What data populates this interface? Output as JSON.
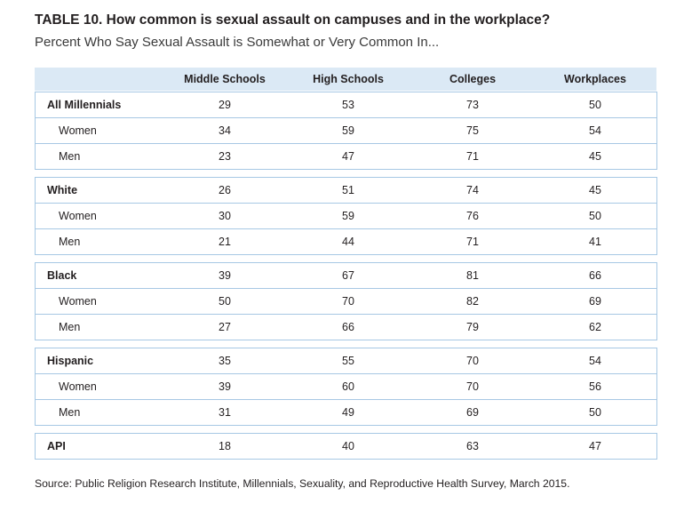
{
  "chart_data": {
    "type": "table",
    "title": "TABLE 10.  How common is sexual assault on campuses and in the workplace?",
    "subtitle": "Percent Who Say Sexual Assault is Somewhat or Very Common In...",
    "columns": [
      "Middle Schools",
      "High Schools",
      "Colleges",
      "Workplaces"
    ],
    "groups": [
      {
        "rows": [
          {
            "label": "All Millennials",
            "bold": true,
            "values": [
              29,
              53,
              73,
              50
            ]
          },
          {
            "label": "Women",
            "bold": false,
            "values": [
              34,
              59,
              75,
              54
            ]
          },
          {
            "label": "Men",
            "bold": false,
            "values": [
              23,
              47,
              71,
              45
            ]
          }
        ]
      },
      {
        "rows": [
          {
            "label": "White",
            "bold": true,
            "values": [
              26,
              51,
              74,
              45
            ]
          },
          {
            "label": "Women",
            "bold": false,
            "values": [
              30,
              59,
              76,
              50
            ]
          },
          {
            "label": "Men",
            "bold": false,
            "values": [
              21,
              44,
              71,
              41
            ]
          }
        ]
      },
      {
        "rows": [
          {
            "label": "Black",
            "bold": true,
            "values": [
              39,
              67,
              81,
              66
            ]
          },
          {
            "label": "Women",
            "bold": false,
            "values": [
              50,
              70,
              82,
              69
            ]
          },
          {
            "label": "Men",
            "bold": false,
            "values": [
              27,
              66,
              79,
              62
            ]
          }
        ]
      },
      {
        "rows": [
          {
            "label": "Hispanic",
            "bold": true,
            "values": [
              35,
              55,
              70,
              54
            ]
          },
          {
            "label": "Women",
            "bold": false,
            "values": [
              39,
              60,
              70,
              56
            ]
          },
          {
            "label": "Men",
            "bold": false,
            "values": [
              31,
              49,
              69,
              50
            ]
          }
        ]
      },
      {
        "rows": [
          {
            "label": "API",
            "bold": true,
            "values": [
              18,
              40,
              63,
              47
            ]
          }
        ]
      }
    ],
    "source": "Source: Public Religion Research Institute, Millennials, Sexuality, and Reproductive Health Survey, March 2015."
  }
}
